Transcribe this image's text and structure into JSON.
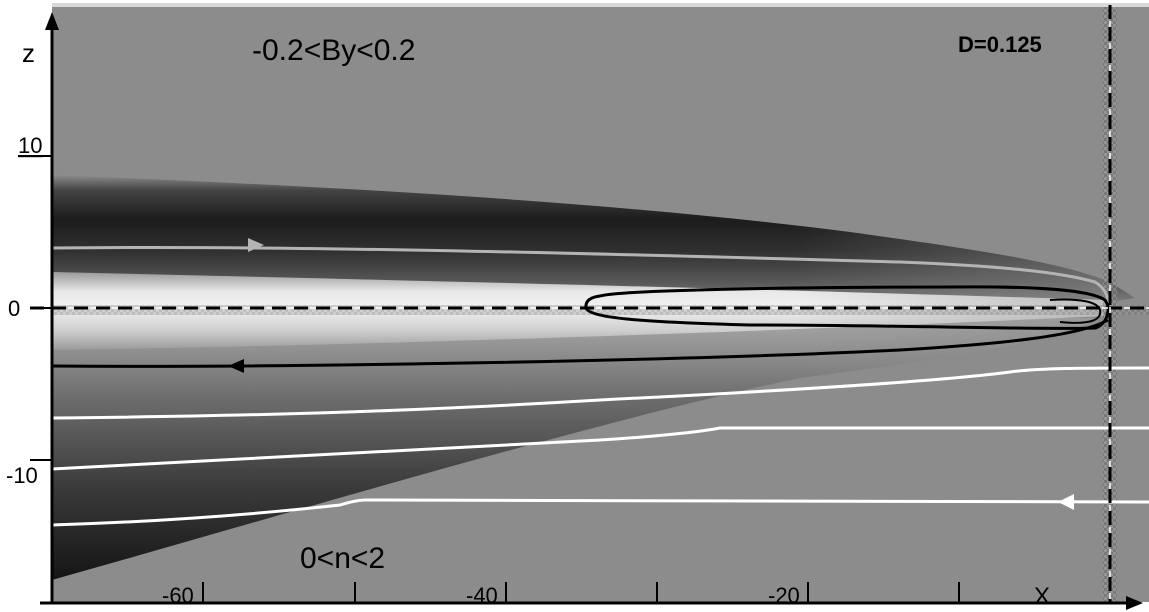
{
  "annotations": {
    "by_range": "-0.2<By<0.2",
    "n_range": "0<n<2",
    "d_value": "D=0.125"
  },
  "axes": {
    "z_label": "z",
    "x_label": "X",
    "x_ticks": [
      "-60",
      "-40",
      "-20"
    ],
    "z_ticks": [
      "10",
      "0",
      "-10"
    ]
  },
  "colors": {
    "background_field": "#8c8c8c",
    "dark_band": "#1e1e1e",
    "bright_band": "#ececec",
    "gray_field_line": "#b4b4b4",
    "black_field_line": "#000000",
    "white_field_line": "#ffffff"
  }
}
